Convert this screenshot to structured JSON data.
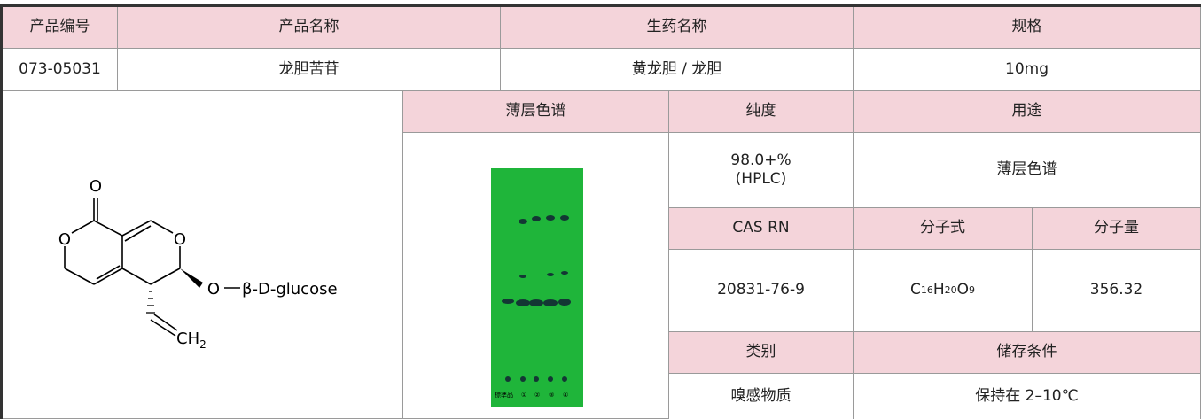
{
  "table": {
    "header1": [
      "产品编号",
      "产品名称",
      "生药名称",
      "规格"
    ],
    "row1": [
      "073-05031",
      "龙胆苦苷",
      "黄龙胆 / 龙胆",
      "10mg"
    ],
    "header2": [
      "薄层色谱",
      "纯度",
      "用途"
    ],
    "purity": [
      "98.0+%",
      "(HPLC)"
    ],
    "usage": "薄层色谱",
    "header3": [
      "CAS RN",
      "分子式",
      "分子量"
    ],
    "cas": "20831-76-9",
    "formula": [
      "C",
      "16",
      "H",
      "20",
      "O",
      "9"
    ],
    "mw": "356.32",
    "header4": [
      "类别",
      "储存条件"
    ],
    "category": "嗅感物质",
    "storage": "保持在 2–10℃"
  },
  "structure": {
    "atoms": [
      "O",
      "O",
      "O",
      "O",
      "β-D-glucose",
      "CH",
      "2"
    ]
  },
  "tlc": {
    "labels": [
      "標準品",
      "①",
      "②",
      "③",
      "④"
    ]
  }
}
